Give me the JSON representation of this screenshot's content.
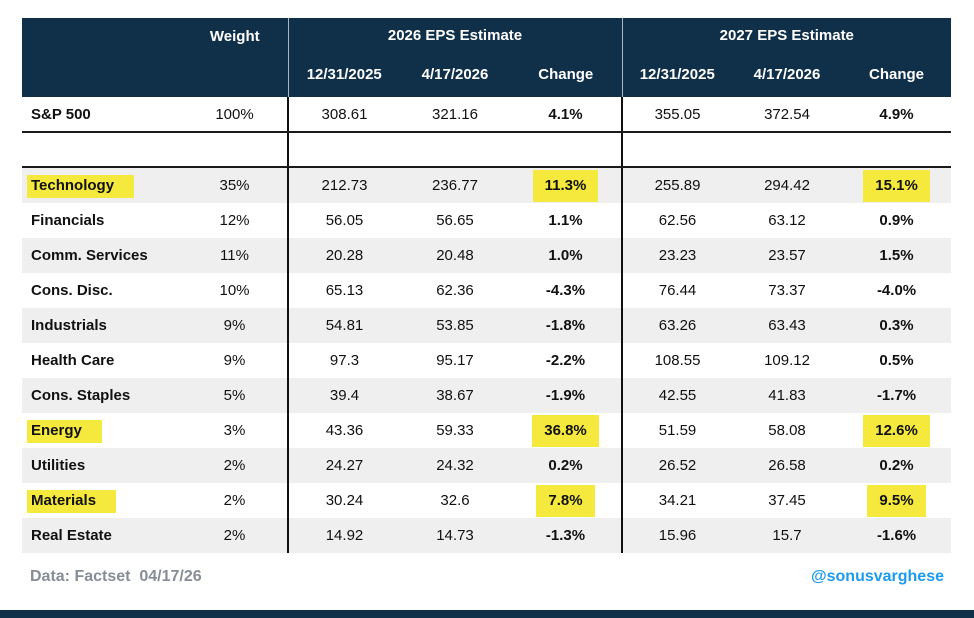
{
  "chart_data": {
    "type": "table",
    "weight_column": "Weight",
    "column_groups": [
      {
        "label": "2026 EPS Estimate",
        "columns": [
          "12/31/2025",
          "4/17/2026",
          "Change"
        ]
      },
      {
        "label": "2027 EPS Estimate",
        "columns": [
          "12/31/2025",
          "4/17/2026",
          "Change"
        ]
      }
    ],
    "summary_row": {
      "name": "S&P 500",
      "weight": "100%",
      "values": [
        "308.61",
        "321.16",
        "4.1%",
        "355.05",
        "372.54",
        "4.9%"
      ]
    },
    "rows": [
      {
        "name": "Technology",
        "weight": "35%",
        "values": [
          "212.73",
          "236.77",
          "11.3%",
          "255.89",
          "294.42",
          "15.1%"
        ],
        "highlighted": true
      },
      {
        "name": "Financials",
        "weight": "12%",
        "values": [
          "56.05",
          "56.65",
          "1.1%",
          "62.56",
          "63.12",
          "0.9%"
        ],
        "highlighted": false
      },
      {
        "name": "Comm. Services",
        "weight": "11%",
        "values": [
          "20.28",
          "20.48",
          "1.0%",
          "23.23",
          "23.57",
          "1.5%"
        ],
        "highlighted": false
      },
      {
        "name": "Cons. Disc.",
        "weight": "10%",
        "values": [
          "65.13",
          "62.36",
          "-4.3%",
          "76.44",
          "73.37",
          "-4.0%"
        ],
        "highlighted": false
      },
      {
        "name": "Industrials",
        "weight": "9%",
        "values": [
          "54.81",
          "53.85",
          "-1.8%",
          "63.26",
          "63.43",
          "0.3%"
        ],
        "highlighted": false
      },
      {
        "name": "Health Care",
        "weight": "9%",
        "values": [
          "97.3",
          "95.17",
          "-2.2%",
          "108.55",
          "109.12",
          "0.5%"
        ],
        "highlighted": false
      },
      {
        "name": "Cons. Staples",
        "weight": "5%",
        "values": [
          "39.4",
          "38.67",
          "-1.9%",
          "42.55",
          "41.83",
          "-1.7%"
        ],
        "highlighted": false
      },
      {
        "name": "Energy",
        "weight": "3%",
        "values": [
          "43.36",
          "59.33",
          "36.8%",
          "51.59",
          "58.08",
          "12.6%"
        ],
        "highlighted": true
      },
      {
        "name": "Utilities",
        "weight": "2%",
        "values": [
          "24.27",
          "24.32",
          "0.2%",
          "26.52",
          "26.58",
          "0.2%"
        ],
        "highlighted": false
      },
      {
        "name": "Materials",
        "weight": "2%",
        "values": [
          "30.24",
          "32.6",
          "7.8%",
          "34.21",
          "37.45",
          "9.5%"
        ],
        "highlighted": true
      },
      {
        "name": "Real Estate",
        "weight": "2%",
        "values": [
          "14.92",
          "14.73",
          "-1.3%",
          "15.96",
          "15.7",
          "-1.6%"
        ],
        "highlighted": false
      }
    ]
  },
  "footer": {
    "source": "Data: Factset  04/17/26",
    "handle": "@sonusvarghese"
  },
  "colors": {
    "header_navy": "#103049",
    "highlight_yellow": "#f6e93d",
    "row_stripe": "#efefef",
    "divider_black": "#111111",
    "source_gray": "#878d96",
    "handle_blue": "#1d9bf0"
  }
}
